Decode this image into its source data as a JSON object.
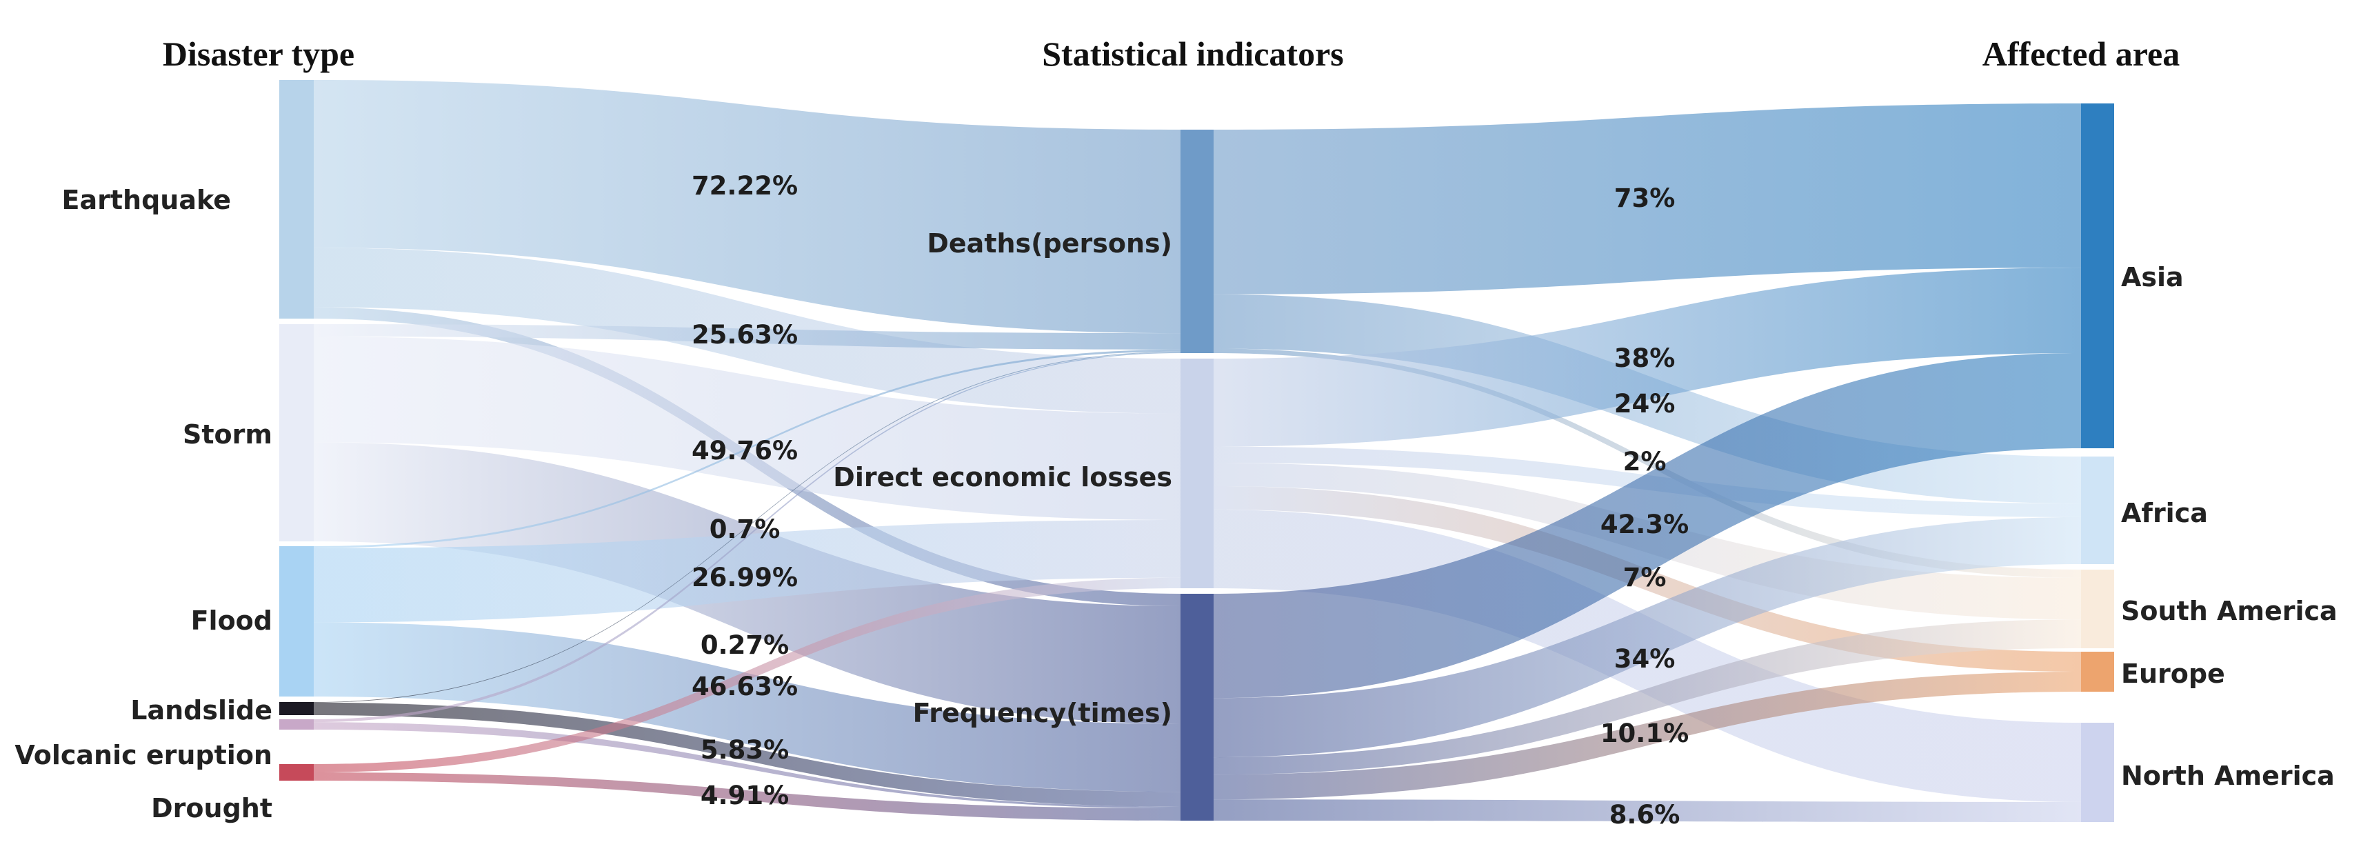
{
  "headers": {
    "left": "Disaster type",
    "middle": "Statistical indicators",
    "right": "Affected area"
  },
  "colors": {
    "earthquake": "#b7d3ea",
    "storm": "#e8ecf7",
    "flood": "#a9d3f3",
    "landslide": "#1c1a24",
    "volcanic": "#c8a8c8",
    "drought": "#c64a5a",
    "deaths": "#6f9bc8",
    "losses": "#c9d3ea",
    "frequency": "#4e5f9a",
    "asia": "#2e7fc0",
    "africa": "#cfe4f6",
    "south_america": "#f9ebdc",
    "europe": "#eda46e",
    "north_america": "#cdd3ee"
  },
  "chart_data": {
    "type": "sankey",
    "columns": [
      "Disaster type",
      "Statistical indicators",
      "Affected area"
    ],
    "nodes": {
      "left": [
        "Earthquake",
        "Storm",
        "Flood",
        "Landslide",
        "Volcanic eruption",
        "Drought"
      ],
      "middle": [
        "Deaths(persons)",
        "Direct economic losses",
        "Frequency(times)"
      ],
      "right": [
        "Asia",
        "Africa",
        "South America",
        "Europe",
        "North America"
      ]
    },
    "flow_labels_left": [
      "72.22%",
      "25.63%",
      "49.76%",
      "0.7%",
      "26.99%",
      "0.27%",
      "46.63%",
      "5.83%",
      "4.91%"
    ],
    "flow_labels_right": [
      "73%",
      "38%",
      "24%",
      "2%",
      "42.3%",
      "7%",
      "34%",
      "10.1%",
      "8.6%"
    ],
    "links": [
      {
        "source": "Earthquake",
        "target": "Deaths(persons)",
        "value": 72.22
      },
      {
        "source": "Earthquake",
        "target": "Direct economic losses",
        "value": 25.63
      },
      {
        "source": "Earthquake",
        "target": "Frequency(times)",
        "value": 4.91
      },
      {
        "source": "Storm",
        "target": "Deaths(persons)",
        "value": 5.83
      },
      {
        "source": "Storm",
        "target": "Direct economic losses",
        "value": 49.76
      },
      {
        "source": "Storm",
        "target": "Frequency(times)",
        "value": 46.63
      },
      {
        "source": "Flood",
        "target": "Deaths(persons)",
        "value": 0.7
      },
      {
        "source": "Flood",
        "target": "Direct economic losses",
        "value": 26.99
      },
      {
        "source": "Flood",
        "target": "Frequency(times)",
        "value": 26.99
      },
      {
        "source": "Landslide",
        "target": "Deaths(persons)",
        "value": 0.27
      },
      {
        "source": "Landslide",
        "target": "Frequency(times)",
        "value": 5.83
      },
      {
        "source": "Volcanic eruption",
        "target": "Deaths(persons)",
        "value": 0.27
      },
      {
        "source": "Volcanic eruption",
        "target": "Frequency(times)",
        "value": 0.7
      },
      {
        "source": "Drought",
        "target": "Direct economic losses",
        "value": 4.91
      },
      {
        "source": "Drought",
        "target": "Frequency(times)",
        "value": 4.91
      },
      {
        "source": "Deaths(persons)",
        "target": "Asia",
        "value": 73
      },
      {
        "source": "Deaths(persons)",
        "target": "Africa",
        "value": 24
      },
      {
        "source": "Deaths(persons)",
        "target": "South America",
        "value": 2
      },
      {
        "source": "Direct economic losses",
        "target": "Asia",
        "value": 38
      },
      {
        "source": "Direct economic losses",
        "target": "Africa",
        "value": 7
      },
      {
        "source": "Direct economic losses",
        "target": "South America",
        "value": 10.1
      },
      {
        "source": "Direct economic losses",
        "target": "Europe",
        "value": 10.1
      },
      {
        "source": "Direct economic losses",
        "target": "North America",
        "value": 34
      },
      {
        "source": "Frequency(times)",
        "target": "Asia",
        "value": 42.3
      },
      {
        "source": "Frequency(times)",
        "target": "Africa",
        "value": 24
      },
      {
        "source": "Frequency(times)",
        "target": "South America",
        "value": 7
      },
      {
        "source": "Frequency(times)",
        "target": "Europe",
        "value": 10.1
      },
      {
        "source": "Frequency(times)",
        "target": "North America",
        "value": 8.6
      }
    ]
  }
}
